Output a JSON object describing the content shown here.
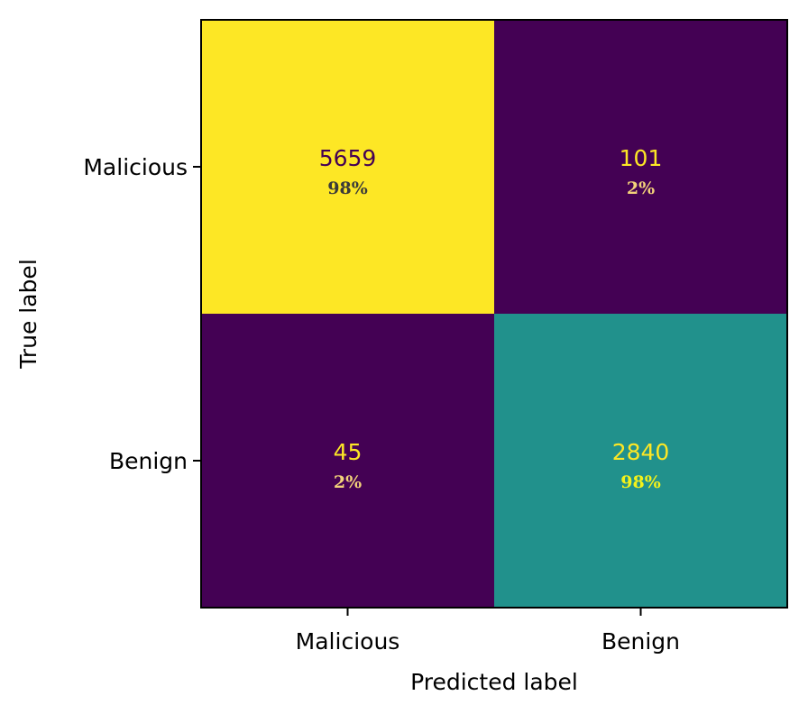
{
  "chart_data": {
    "type": "heatmap",
    "subtype": "confusion-matrix",
    "colormap": "viridis",
    "row_labels": [
      "Malicious",
      "Benign"
    ],
    "col_labels": [
      "Malicious",
      "Benign"
    ],
    "xlabel": "Predicted label",
    "ylabel": "True label",
    "values": [
      [
        5659,
        101
      ],
      [
        45,
        2840
      ]
    ],
    "percent_labels": [
      [
        "98%",
        "2%"
      ],
      [
        "2%",
        "98%"
      ]
    ],
    "cell_colors": [
      [
        "#fde725",
        "#440154"
      ],
      [
        "#440154",
        "#21918c"
      ]
    ],
    "count_text_colors": [
      [
        "#440154",
        "#fde725"
      ],
      [
        "#fde725",
        "#fde725"
      ]
    ],
    "percent_text_colors": [
      [
        "#3a3a3a",
        "#f3d27a"
      ],
      [
        "#f3d27a",
        "#f4f21a"
      ]
    ],
    "grid": false,
    "legend": "none"
  }
}
